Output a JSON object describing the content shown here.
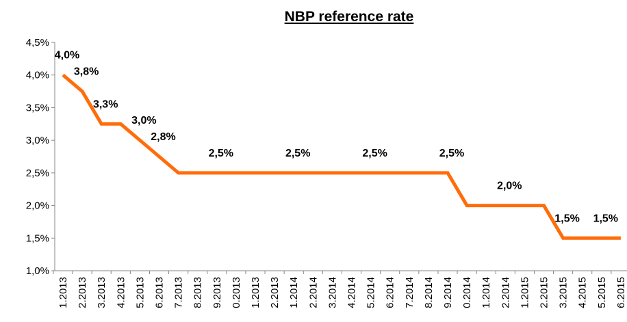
{
  "chart_data": {
    "type": "line",
    "title": "NBP reference rate",
    "categories": [
      "1.2013",
      "2.2013",
      "3.2013",
      "4.2013",
      "5.2013",
      "6.2013",
      "7.2013",
      "8.2013",
      "9.2013",
      "0.2013",
      "1.2013",
      "2.2013",
      "1.2014",
      "2.2014",
      "3.2014",
      "4.2014",
      "5.2014",
      "6.2014",
      "7.2014",
      "8.2014",
      "9.2014",
      "0.2014",
      "1.2014",
      "2.2014",
      "1.2015",
      "2.2015",
      "3.2015",
      "4.2015",
      "5.2015",
      "6.2015"
    ],
    "values": [
      4.0,
      3.75,
      3.25,
      3.25,
      3.0,
      2.75,
      2.5,
      2.5,
      2.5,
      2.5,
      2.5,
      2.5,
      2.5,
      2.5,
      2.5,
      2.5,
      2.5,
      2.5,
      2.5,
      2.5,
      2.5,
      2.0,
      2.0,
      2.0,
      2.0,
      2.0,
      1.5,
      1.5,
      1.5,
      1.5
    ],
    "value_labels": [
      "4,0%",
      "3,8%",
      "3,3%",
      null,
      "3,0%",
      "2,8%",
      null,
      null,
      "2,5%",
      null,
      null,
      null,
      "2,5%",
      null,
      null,
      null,
      "2,5%",
      null,
      null,
      null,
      "2,5%",
      null,
      null,
      "2,0%",
      null,
      null,
      "1,5%",
      null,
      "1,5%",
      null
    ],
    "color": "#ff6d0a",
    "ylim": [
      1.0,
      4.5
    ],
    "yticks": [
      {
        "value": 1.0,
        "label": "1,0%"
      },
      {
        "value": 1.5,
        "label": "1,5%"
      },
      {
        "value": 2.0,
        "label": "2,0%"
      },
      {
        "value": 2.5,
        "label": "2,5%"
      },
      {
        "value": 3.0,
        "label": "3,0%"
      },
      {
        "value": 3.5,
        "label": "3,5%"
      },
      {
        "value": 4.0,
        "label": "4,0%"
      },
      {
        "value": 4.5,
        "label": "4,5%"
      }
    ],
    "grid": false
  }
}
